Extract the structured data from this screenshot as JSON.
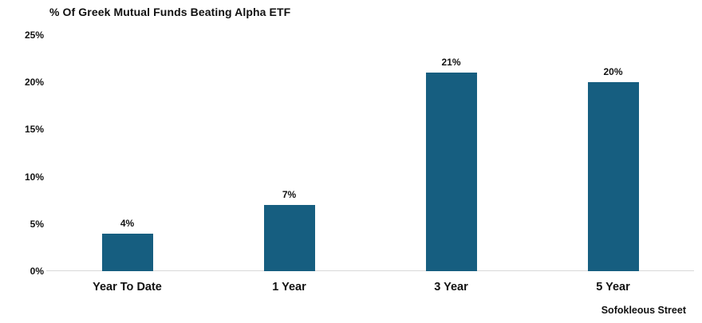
{
  "title": "% Of Greek Mutual Funds Beating Alpha ETF",
  "source_label": "Sofokleous Street",
  "colors": {
    "bar": "#165E80",
    "axis_line": "#D9D9D9",
    "text": "#111111",
    "background": "#FFFFFF"
  },
  "chart_data": {
    "type": "bar",
    "title": "% Of Greek Mutual Funds Beating Alpha ETF",
    "categories": [
      "Year To Date",
      "1 Year",
      "3 Year",
      "5 Year"
    ],
    "values": [
      4,
      7,
      21,
      20
    ],
    "data_labels": [
      "4%",
      "7%",
      "21%",
      "20%"
    ],
    "xlabel": "",
    "ylabel": "",
    "ylim": [
      0,
      25
    ],
    "yticks": [
      "0%",
      "5%",
      "10%",
      "15%",
      "20%",
      "25%"
    ],
    "ytick_values": [
      0,
      5,
      10,
      15,
      20,
      25
    ],
    "grid": false,
    "legend": false,
    "bar_color": "#165E80",
    "annotation": "Sofokleous Street"
  }
}
